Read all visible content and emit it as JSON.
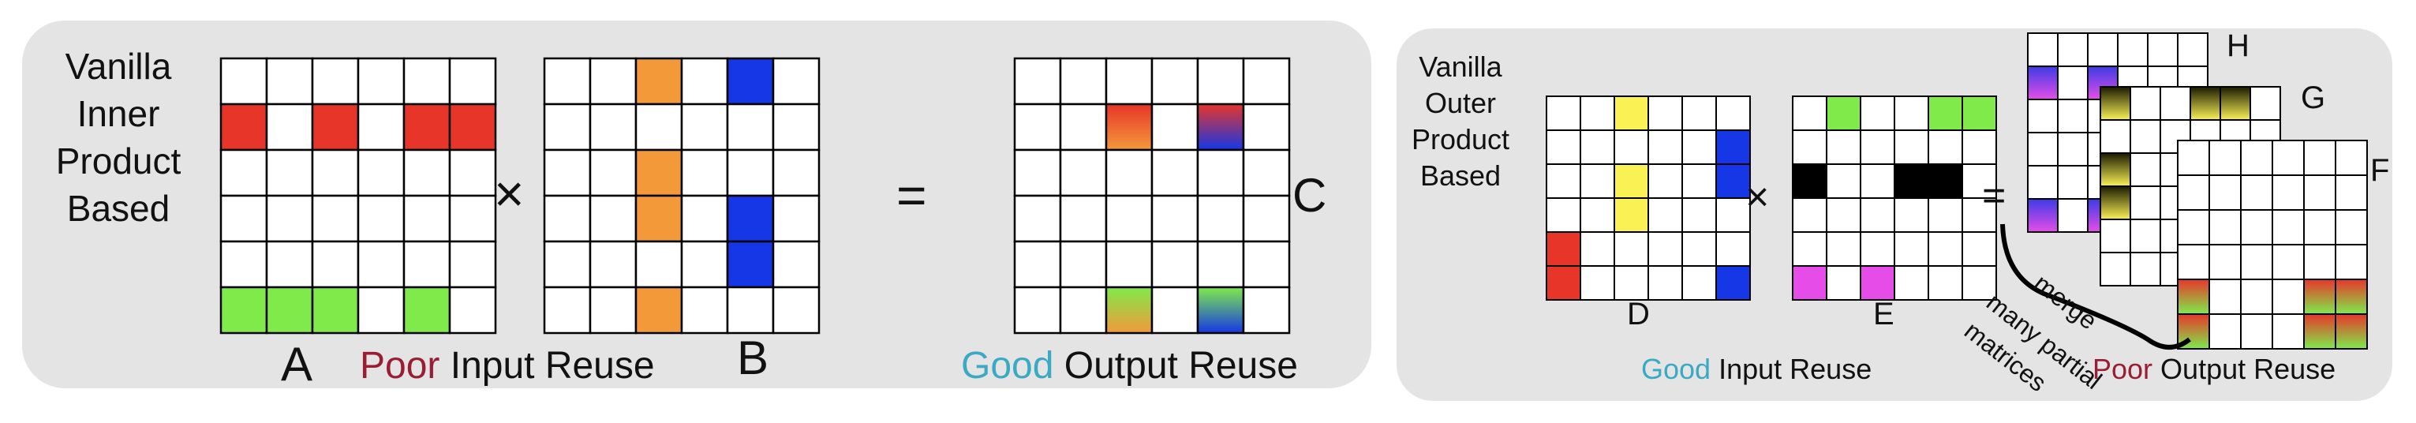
{
  "inner": {
    "title": "Vanilla\nInner\nProduct\nBased",
    "label_a": "A",
    "label_b": "B",
    "label_c": "C",
    "times": "×",
    "equals": "=",
    "input_caption": {
      "quality": "Poor",
      "rest": " Input Reuse"
    },
    "output_caption": {
      "quality": "Good",
      "rest": " Output Reuse"
    }
  },
  "outer": {
    "title": "Vanilla\nOuter\nProduct\nBased",
    "label_d": "D",
    "label_e": "E",
    "label_f": "F",
    "label_g": "G",
    "label_h": "H",
    "times": "×",
    "equals": "=",
    "merge_text": "merge",
    "partial_text": "many partial",
    "matrices_text": "matrices",
    "input_caption": {
      "quality": "Good",
      "rest": " Input Reuse"
    },
    "output_caption": {
      "quality": "Poor",
      "rest": " Output Reuse"
    }
  },
  "colors": {
    "panel": "#e4e4e4",
    "red": "#e8352a",
    "green": "#7fea4a",
    "orange": "#f3993a",
    "blue": "#1537e6",
    "yellow": "#faf255",
    "magenta": "#e64de8",
    "black": "#000000",
    "good": "#3aa9c3",
    "poor": "#9a1e33"
  }
}
